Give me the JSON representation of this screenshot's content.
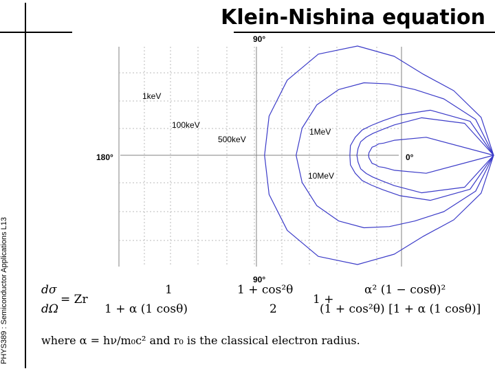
{
  "slide": {
    "title": "Klein-Nishina equation",
    "sidebar_text": "PHYS389 : Semiconductor Applications L13"
  },
  "colors": {
    "curve": "#3a3ac8",
    "grid": "#b8b8b8",
    "axis": "#808080"
  },
  "chart_data": {
    "type": "polar",
    "angle_labels": {
      "top": "90°",
      "bottom": "90°",
      "left": "180°",
      "right": "0°"
    },
    "grid": true,
    "series": [
      {
        "name": "1keV",
        "r": [
          1.0,
          0.95,
          0.86,
          0.8,
          0.86,
          0.95,
          1.0,
          1.0,
          0.98,
          0.96
        ]
      },
      {
        "name": "100keV",
        "r": [
          1.0,
          0.9,
          0.75,
          0.65,
          0.62,
          0.63,
          0.65,
          0.67,
          0.68,
          0.69
        ]
      },
      {
        "name": "500keV",
        "r": [
          1.0,
          0.85,
          0.6,
          0.4,
          0.3,
          0.26,
          0.25,
          0.24,
          0.24,
          0.23
        ]
      },
      {
        "name": "1MeV",
        "r": [
          1.0,
          0.8,
          0.5,
          0.3,
          0.22,
          0.19,
          0.18,
          0.18,
          0.17,
          0.17
        ]
      },
      {
        "name": "10MeV",
        "r": [
          1.0,
          0.45,
          0.2,
          0.12,
          0.1,
          0.08,
          0.08,
          0.07,
          0.07,
          0.07
        ]
      }
    ],
    "angles_deg": [
      0,
      20,
      40,
      60,
      80,
      100,
      120,
      140,
      160,
      180
    ]
  },
  "formula": {
    "lhs_num": "dσ",
    "lhs_den": "dΩ",
    "eq": "= Zr",
    "t1_num": "1",
    "t1_den": "1 + α (1    cosθ)",
    "t2_num": "1 + cos²θ",
    "t2_den": "2",
    "t3_lead": "1 +",
    "t3_num": "α² (1 − cosθ)²",
    "t3_den": "(1 + cos²θ) [1 + α (1    cosθ)]"
  },
  "footnote": "where α = hν/m₀c² and r₀ is the classical electron radius."
}
